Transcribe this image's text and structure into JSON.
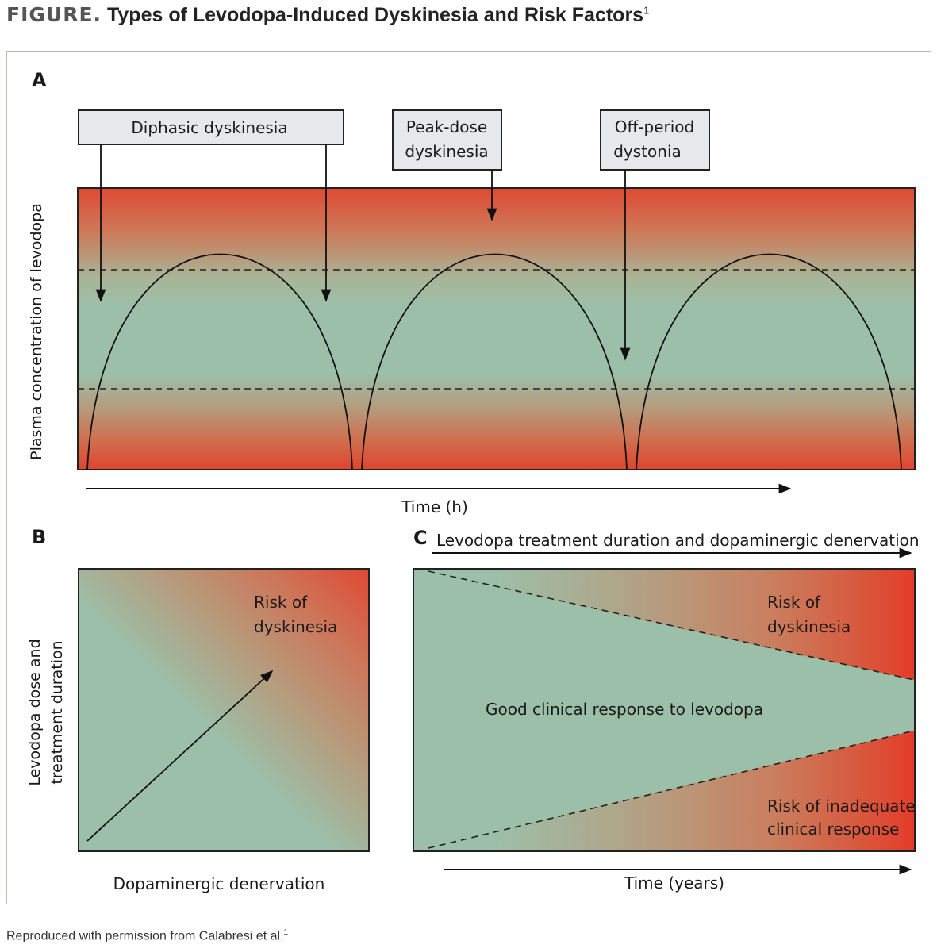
{
  "figure": {
    "label": "FIGURE.",
    "title": "Types of Levodopa-Induced Dyskinesia and Risk Factors",
    "title_sup": "1",
    "caption": "Reproduced with permission from Calabresi et al.",
    "caption_sup": "1"
  },
  "panel_a": {
    "letter": "A",
    "box_diphasic": "Diphasic dyskinesia",
    "box_peak_line1": "Peak-dose",
    "box_peak_line2": "dyskinesia",
    "box_off_line1": "Off-period",
    "box_off_line2": "dystonia",
    "y_label": "Plasma concentration of levodopa",
    "x_label": "Time (h)"
  },
  "panel_b": {
    "letter": "B",
    "risk_line1": "Risk of",
    "risk_line2": "dyskinesia",
    "y_label_line1": "Levodopa dose and",
    "y_label_line2": "treatment duration",
    "x_label": "Dopaminergic denervation"
  },
  "panel_c": {
    "letter": "C",
    "top_label": "Levodopa treatment duration and dopaminergic denervation",
    "risk_top_line1": "Risk of",
    "risk_top_line2": "dyskinesia",
    "center_label": "Good clinical response to levodopa",
    "risk_bottom_line1": "Risk of inadequate",
    "risk_bottom_line2": "clinical response",
    "x_label": "Time (years)"
  },
  "colors": {
    "red": "#df4a33",
    "teal": "#9cbfa9",
    "box_fill": "#e6e8e9"
  }
}
